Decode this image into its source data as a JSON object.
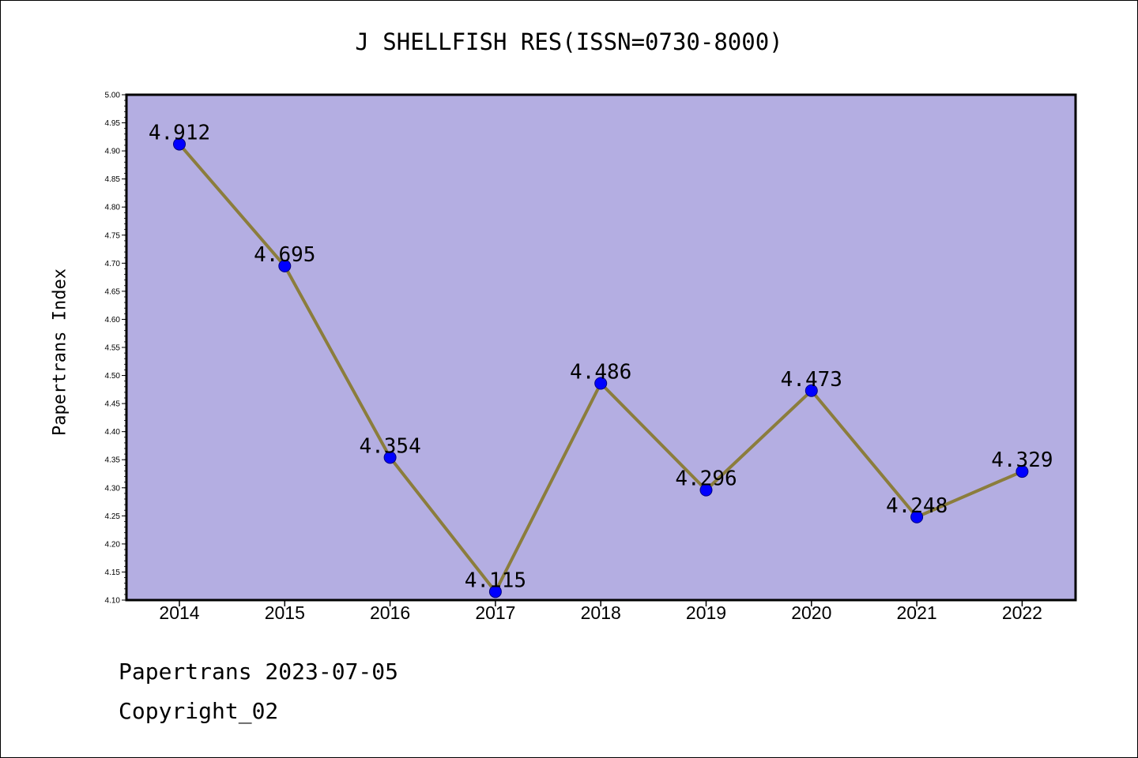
{
  "chart_data": {
    "type": "line",
    "title": "J SHELLFISH RES(ISSN=0730-8000)",
    "xlabel": "",
    "ylabel": "Papertrans Index",
    "categories": [
      "2014",
      "2015",
      "2016",
      "2017",
      "2018",
      "2019",
      "2020",
      "2021",
      "2022"
    ],
    "values": [
      4.912,
      4.695,
      4.354,
      4.115,
      4.486,
      4.296,
      4.473,
      4.248,
      4.329
    ],
    "data_labels": [
      "4.912",
      "4.695",
      "4.354",
      "4.115",
      "4.486",
      "4.296",
      "4.473",
      "4.248",
      "4.329"
    ],
    "ylim": [
      4.1,
      5.0
    ],
    "yticks": [
      "4.10",
      "4.15",
      "4.20",
      "4.25",
      "4.30",
      "4.35",
      "4.40",
      "4.45",
      "4.50",
      "4.55",
      "4.60",
      "4.65",
      "4.70",
      "4.75",
      "4.80",
      "4.85",
      "4.90",
      "4.95",
      "5.00"
    ],
    "grid": false,
    "colors": {
      "plot_background": "#b4aee2",
      "line": "#8b7d3c",
      "marker": "#0000ff",
      "marker_edge": "#000080"
    }
  },
  "footer": {
    "line1": "Papertrans 2023-07-05",
    "line2": "Copyright_02"
  }
}
